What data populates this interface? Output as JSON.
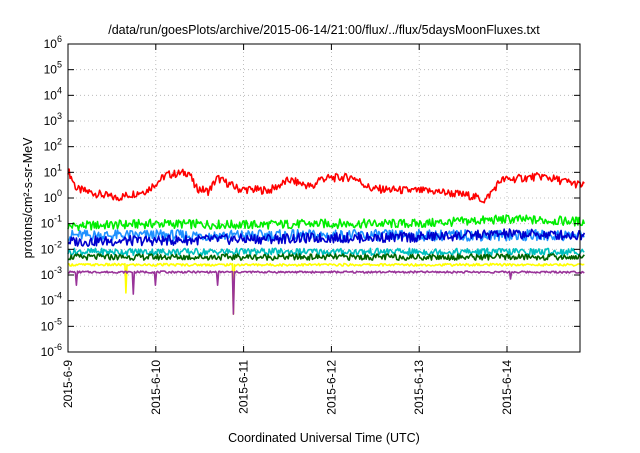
{
  "chart_data": {
    "type": "line",
    "title": "/data/run/goesPlots/archive/2015-06-14/21:00/flux/../flux/5daysMoonFluxes.txt",
    "xlabel": "Coordinated Universal Time (UTC)",
    "ylabel": "protons/cm²-s-sr-MeV",
    "yscale": "log",
    "ylim": [
      1e-06,
      1000000.0
    ],
    "y_tick_exponents": [
      -6,
      -5,
      -4,
      -3,
      -2,
      -1,
      0,
      1,
      2,
      3,
      4,
      5,
      6
    ],
    "xlim": [
      "2015-06-09",
      "2015-06-14 21:00"
    ],
    "x_ticks": [
      "2015-6-9",
      "2015-6-10",
      "2015-6-11",
      "2015-6-12",
      "2015-6-13",
      "2015-6-14"
    ],
    "grid": true,
    "legend": "none",
    "series": [
      {
        "color": "#ff0000",
        "level": 3,
        "noise": 0.16,
        "profile": [
          [
            0.0,
            12
          ],
          [
            0.1,
            2.2
          ],
          [
            0.55,
            1.0
          ],
          [
            0.9,
            2.0
          ],
          [
            1.12,
            8
          ],
          [
            1.38,
            10
          ],
          [
            1.45,
            2.5
          ],
          [
            1.6,
            1.8
          ],
          [
            1.7,
            6
          ],
          [
            1.95,
            2.2
          ],
          [
            2.3,
            2.0
          ],
          [
            2.52,
            5
          ],
          [
            2.8,
            2.6
          ],
          [
            2.85,
            5.5
          ],
          [
            3.0,
            6
          ],
          [
            3.25,
            6.5
          ],
          [
            3.45,
            2.3
          ],
          [
            3.8,
            2.0
          ],
          [
            4.2,
            1.8
          ],
          [
            4.6,
            1.2
          ],
          [
            4.75,
            0.8
          ],
          [
            4.93,
            5
          ],
          [
            5.4,
            7
          ],
          [
            5.875,
            3
          ]
        ],
        "dips": []
      },
      {
        "color": "#00ee00",
        "level": 0.1,
        "noise": 0.18,
        "profile": [
          [
            0.0,
            0.08
          ],
          [
            1.0,
            0.1
          ],
          [
            2.0,
            0.09
          ],
          [
            3.0,
            0.1
          ],
          [
            4.0,
            0.1
          ],
          [
            5.0,
            0.15
          ],
          [
            5.875,
            0.12
          ]
        ],
        "dips": []
      },
      {
        "color": "#1e90ff",
        "level": 0.035,
        "noise": 0.22,
        "profile": [],
        "dips": []
      },
      {
        "color": "#0000cd",
        "level": 0.025,
        "noise": 0.2,
        "profile": [
          [
            0.0,
            0.02
          ],
          [
            1.0,
            0.022
          ],
          [
            2.0,
            0.025
          ],
          [
            3.0,
            0.028
          ],
          [
            4.0,
            0.03
          ],
          [
            5.0,
            0.04
          ],
          [
            5.875,
            0.035
          ]
        ],
        "dips": []
      },
      {
        "color": "#00bfbf",
        "level": 0.008,
        "noise": 0.14,
        "profile": [],
        "dips": []
      },
      {
        "color": "#006400",
        "level": 0.005,
        "noise": 0.12,
        "profile": [],
        "dips": []
      },
      {
        "color": "#ffff00",
        "level": 0.0025,
        "noise": 0.05,
        "profile": [],
        "dips": [
          [
            0.66,
            0.0002
          ],
          [
            1.88,
            3e-05
          ]
        ]
      },
      {
        "color": "#993399",
        "level": 0.0013,
        "noise": 0.04,
        "profile": [],
        "dips": [
          [
            0.1,
            0.0004
          ],
          [
            0.74,
            0.00018
          ],
          [
            1.0,
            0.0004
          ],
          [
            1.7,
            0.0004
          ],
          [
            1.88,
            3e-05
          ],
          [
            5.04,
            0.0007
          ]
        ]
      }
    ]
  }
}
